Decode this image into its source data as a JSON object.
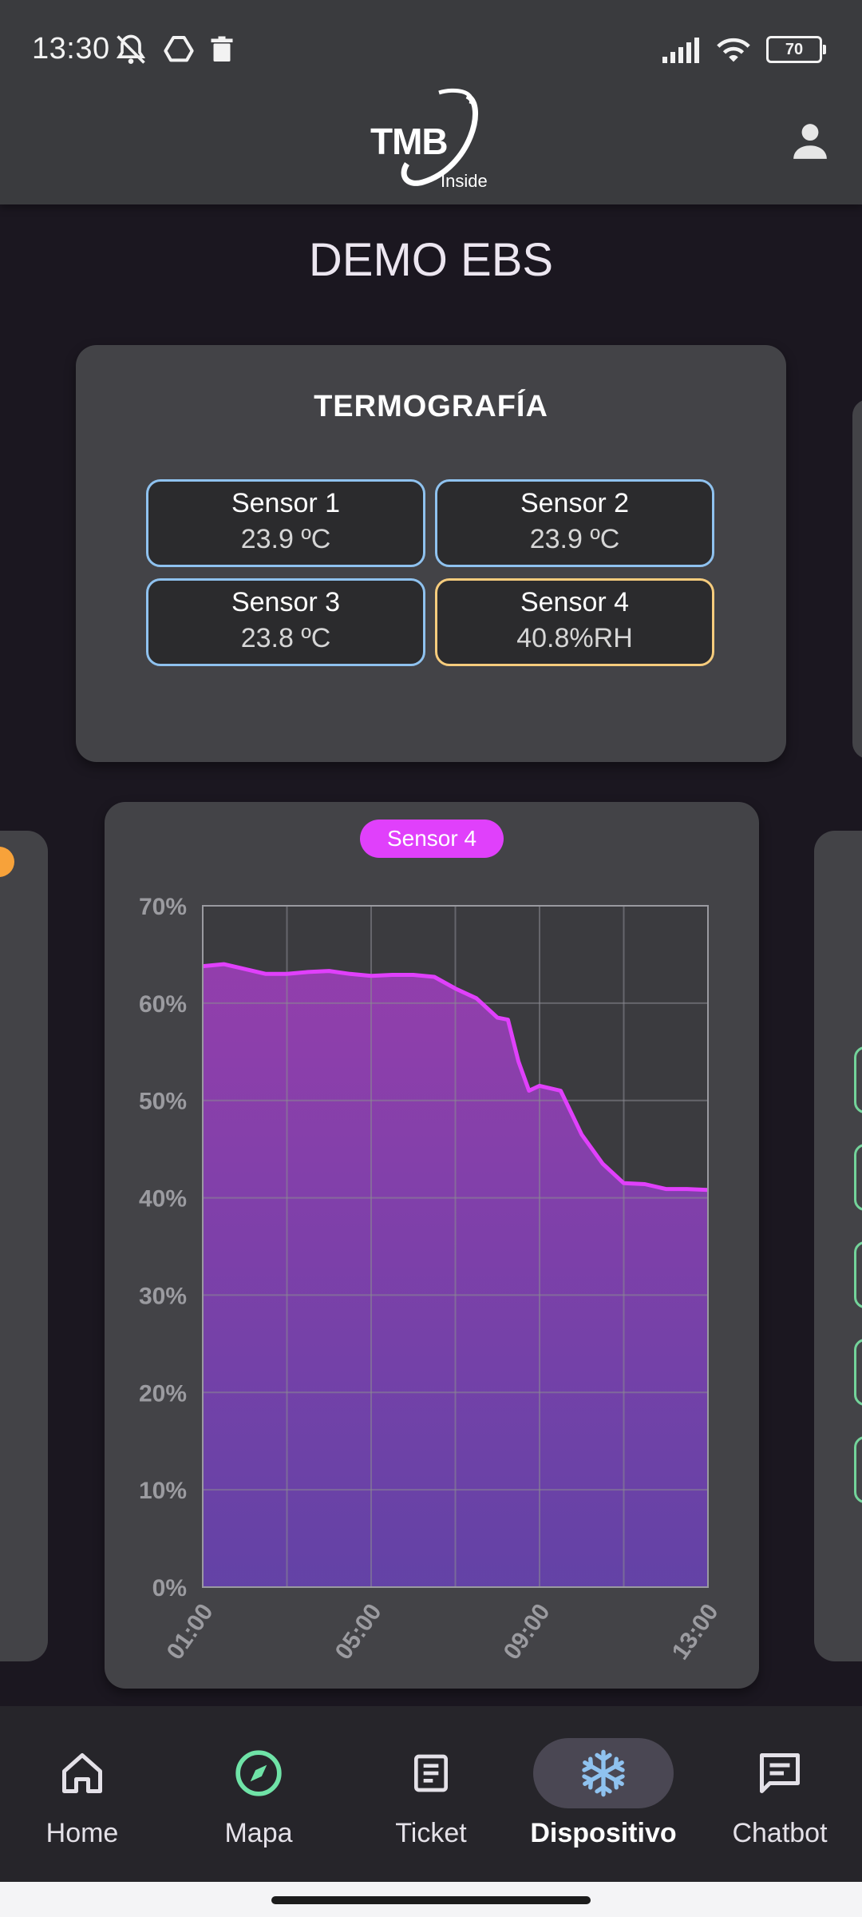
{
  "status_bar": {
    "time": "13:30",
    "battery": "70"
  },
  "header": {
    "logo_text": "TMB",
    "logo_subtext": "Inside"
  },
  "page": {
    "title": "DEMO EBS"
  },
  "thermography": {
    "title": "TERMOGRAFÍA",
    "sensors": [
      {
        "name": "Sensor 1",
        "value": "23.9 ºC",
        "status_color": "#8fc2ef"
      },
      {
        "name": "Sensor 2",
        "value": "23.9 ºC",
        "status_color": "#8fc2ef"
      },
      {
        "name": "Sensor 3",
        "value": "23.8 ºC",
        "status_color": "#8fc2ef"
      },
      {
        "name": "Sensor 4",
        "value": "40.8%RH",
        "status_color": "#f6cc7d"
      }
    ]
  },
  "chart_data": {
    "type": "area",
    "series": [
      {
        "name": "Sensor 4",
        "color": "#e040fb",
        "x": [
          "01:00",
          "01:30",
          "02:00",
          "02:30",
          "03:00",
          "03:30",
          "04:00",
          "04:30",
          "05:00",
          "05:30",
          "06:00",
          "06:30",
          "07:00",
          "07:30",
          "08:00",
          "08:15",
          "08:30",
          "08:45",
          "09:00",
          "09:30",
          "10:00",
          "10:30",
          "11:00",
          "11:30",
          "12:00",
          "12:30",
          "13:00"
        ],
        "values": [
          63.8,
          64.0,
          63.5,
          63.0,
          63.0,
          63.2,
          63.3,
          63.0,
          62.8,
          62.9,
          62.9,
          62.7,
          61.5,
          60.5,
          58.5,
          58.3,
          54.0,
          51.0,
          51.5,
          51.0,
          46.5,
          43.5,
          41.5,
          41.4,
          40.9,
          40.9,
          40.8
        ]
      }
    ],
    "x_ticks": [
      "01:00",
      "05:00",
      "09:00",
      "13:00"
    ],
    "y_ticks": [
      "0%",
      "10%",
      "20%",
      "30%",
      "40%",
      "50%",
      "60%",
      "70%"
    ],
    "ylim": [
      0,
      70
    ],
    "x_range": [
      "01:00",
      "13:00"
    ],
    "grid": true,
    "legend": "top-center"
  },
  "bottom_nav": {
    "items": [
      {
        "label": "Home",
        "icon": "home-icon"
      },
      {
        "label": "Mapa",
        "icon": "compass-icon"
      },
      {
        "label": "Ticket",
        "icon": "ticket-icon"
      },
      {
        "label": "Dispositivo",
        "icon": "snowflake-icon",
        "active": true
      },
      {
        "label": "Chatbot",
        "icon": "chat-icon"
      }
    ]
  },
  "colors": {
    "accent": "#e040fb",
    "compass_green": "#6fe3a7",
    "snowflake_blue": "#8fc2ef"
  }
}
